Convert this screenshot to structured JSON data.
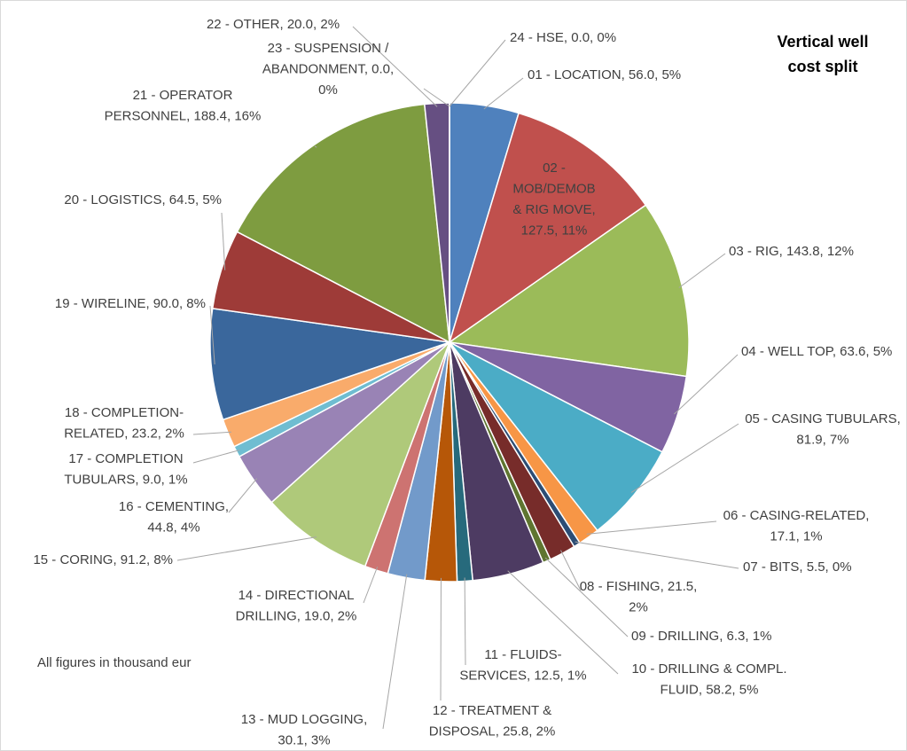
{
  "chart_data": {
    "type": "pie",
    "title": [
      "Vertical well",
      "cost split"
    ],
    "note": "All figures in thousand eur",
    "values": [
      56.0,
      127.5,
      143.8,
      63.6,
      81.9,
      17.1,
      5.5,
      21.5,
      6.3,
      58.2,
      12.5,
      25.8,
      30.1,
      19.0,
      91.2,
      44.8,
      9.0,
      23.2,
      90.0,
      64.5,
      188.4,
      20.0,
      0.0,
      0.0
    ],
    "labels": [
      [
        "01 - LOCATION, 56.0, 5%"
      ],
      [
        "02 -",
        "MOB/DEMOB",
        "& RIG MOVE,",
        "127.5, 11%"
      ],
      [
        "03 - RIG, 143.8, 12%"
      ],
      [
        "04 - WELL TOP, 63.6, 5%"
      ],
      [
        "05 - CASING TUBULARS,",
        "81.9, 7%"
      ],
      [
        "06 - CASING-RELATED,",
        "17.1, 1%"
      ],
      [
        "07 - BITS, 5.5, 0%"
      ],
      [
        "08 - FISHING, 21.5,",
        "2%"
      ],
      [
        "09 - DRILLING, 6.3, 1%"
      ],
      [
        "10 - DRILLING & COMPL.",
        "FLUID, 58.2, 5%"
      ],
      [
        "11 - FLUIDS-",
        "SERVICES, 12.5, 1%"
      ],
      [
        "12 - TREATMENT &",
        "DISPOSAL, 25.8, 2%"
      ],
      [
        "13 - MUD LOGGING,",
        "30.1, 3%"
      ],
      [
        "14 - DIRECTIONAL",
        "DRILLING, 19.0, 2%"
      ],
      [
        "15 - CORING, 91.2, 8%"
      ],
      [
        "16 - CEMENTING,",
        "44.8, 4%"
      ],
      [
        "17 - COMPLETION",
        "TUBULARS, 9.0, 1%"
      ],
      [
        "18 - COMPLETION-",
        "RELATED, 23.2, 2%"
      ],
      [
        "19 - WIRELINE, 90.0, 8%"
      ],
      [
        "20 - LOGISTICS, 64.5, 5%"
      ],
      [
        "21 - OPERATOR",
        "PERSONNEL, 188.4, 16%"
      ],
      [
        "22 - OTHER, 20.0, 2%"
      ],
      [
        "23 - SUSPENSION /",
        "ABANDONMENT, 0.0,",
        "0%"
      ],
      [
        "24 - HSE, 0.0, 0%"
      ]
    ],
    "colors": [
      "#4f81bd",
      "#c0504d",
      "#9bbb59",
      "#8064a2",
      "#4bacc6",
      "#f79646",
      "#2c4d75",
      "#772c2a",
      "#5f7530",
      "#4d3b62",
      "#276a7c",
      "#b65708",
      "#729aca",
      "#cd7371",
      "#afc97a",
      "#9983b5",
      "#6fbdd1",
      "#f9ab6b",
      "#3a679c",
      "#9e3b38",
      "#7e9c40",
      "#664f82",
      "#359ab3",
      "#de7c2d"
    ]
  }
}
